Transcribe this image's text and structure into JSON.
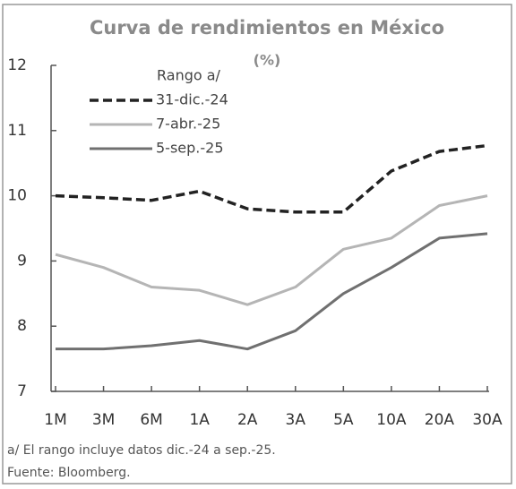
{
  "chart_data": {
    "type": "line",
    "title": "Curva de rendimientos en México",
    "subtitle": "(%)",
    "legend_title": "Rango a/",
    "categories": [
      "1M",
      "3M",
      "6M",
      "1A",
      "2A",
      "3A",
      "5A",
      "10A",
      "20A",
      "30A"
    ],
    "series": [
      {
        "name": "31-dic.-24",
        "color": "#222222",
        "dash": true,
        "values": [
          10.0,
          9.97,
          9.93,
          10.07,
          9.8,
          9.75,
          9.75,
          10.38,
          10.68,
          10.77
        ]
      },
      {
        "name": "7-abr.-25",
        "color": "#b5b5b5",
        "dash": false,
        "values": [
          9.1,
          8.9,
          8.6,
          8.55,
          8.33,
          8.6,
          9.18,
          9.35,
          9.85,
          10.0
        ]
      },
      {
        "name": "5-sep.-25",
        "color": "#707070",
        "dash": false,
        "values": [
          7.65,
          7.65,
          7.7,
          7.78,
          7.65,
          7.93,
          8.5,
          8.9,
          9.35,
          9.42
        ]
      }
    ],
    "ylim": [
      7,
      12
    ],
    "yticks": [
      7,
      8,
      9,
      10,
      11,
      12
    ],
    "notes": [
      "a/ El rango incluye datos dic.-24 a sep.-25.",
      "Fuente: Bloomberg."
    ]
  }
}
